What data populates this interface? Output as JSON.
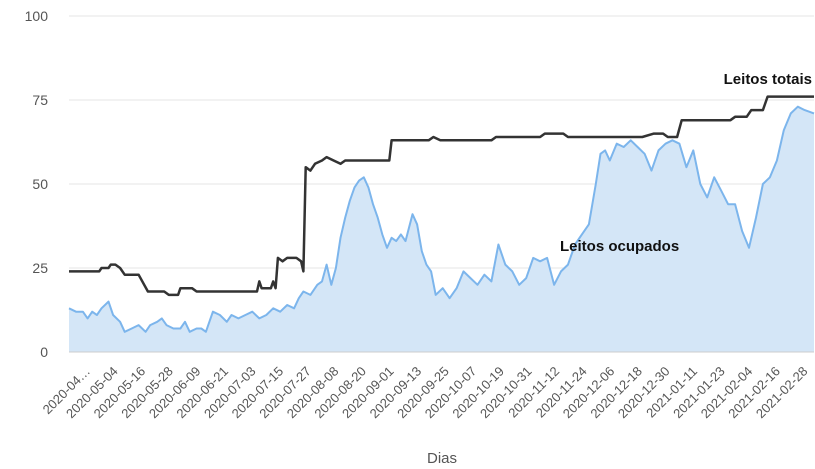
{
  "chart_data": {
    "type": "line",
    "xlabel": "Dias",
    "ylabel": "",
    "ylim": [
      0,
      100
    ],
    "yticks": [
      0,
      25,
      50,
      75,
      100
    ],
    "grid": true,
    "x_tick_labels": [
      "2020-04…",
      "2020-05-04",
      "2020-05-16",
      "2020-05-28",
      "2020-06-09",
      "2020-06-21",
      "2020-07-03",
      "2020-07-15",
      "2020-07-27",
      "2020-08-08",
      "2020-08-20",
      "2020-09-01",
      "2020-09-13",
      "2020-09-25",
      "2020-10-07",
      "2020-10-19",
      "2020-10-31",
      "2020-11-12",
      "2020-11-24",
      "2020-12-06",
      "2020-12-18",
      "2020-12-30",
      "2021-01-11",
      "2021-01-23",
      "2021-02-04",
      "2021-02-16",
      "2021-02-28"
    ],
    "colors": {
      "total": "#333333",
      "occupied_line": "#7cb5ec",
      "occupied_fill": "#d4e6f7",
      "grid": "#e6e6e6"
    },
    "series": [
      {
        "name": "Leitos totais",
        "type": "line",
        "points": [
          [
            "2020-04-23",
            24
          ],
          [
            "2020-05-06",
            24
          ],
          [
            "2020-05-07",
            25
          ],
          [
            "2020-05-10",
            25
          ],
          [
            "2020-05-11",
            26
          ],
          [
            "2020-05-13",
            26
          ],
          [
            "2020-05-15",
            25
          ],
          [
            "2020-05-17",
            23
          ],
          [
            "2020-05-23",
            23
          ],
          [
            "2020-05-27",
            18
          ],
          [
            "2020-06-03",
            18
          ],
          [
            "2020-06-05",
            17
          ],
          [
            "2020-06-09",
            17
          ],
          [
            "2020-06-10",
            19
          ],
          [
            "2020-06-15",
            19
          ],
          [
            "2020-06-17",
            18
          ],
          [
            "2020-07-13",
            18
          ],
          [
            "2020-07-14",
            21
          ],
          [
            "2020-07-15",
            19
          ],
          [
            "2020-07-19",
            19
          ],
          [
            "2020-07-20",
            21
          ],
          [
            "2020-07-21",
            19
          ],
          [
            "2020-07-22",
            28
          ],
          [
            "2020-07-24",
            27
          ],
          [
            "2020-07-26",
            28
          ],
          [
            "2020-07-30",
            28
          ],
          [
            "2020-08-01",
            27
          ],
          [
            "2020-08-02",
            24
          ],
          [
            "2020-08-03",
            55
          ],
          [
            "2020-08-05",
            54
          ],
          [
            "2020-08-07",
            56
          ],
          [
            "2020-08-10",
            57
          ],
          [
            "2020-08-12",
            58
          ],
          [
            "2020-08-15",
            57
          ],
          [
            "2020-08-18",
            56
          ],
          [
            "2020-08-20",
            57
          ],
          [
            "2020-09-08",
            57
          ],
          [
            "2020-09-09",
            63
          ],
          [
            "2020-09-25",
            63
          ],
          [
            "2020-09-27",
            64
          ],
          [
            "2020-09-30",
            63
          ],
          [
            "2020-10-22",
            63
          ],
          [
            "2020-10-24",
            64
          ],
          [
            "2020-11-12",
            64
          ],
          [
            "2020-11-14",
            65
          ],
          [
            "2020-11-22",
            65
          ],
          [
            "2020-11-24",
            64
          ],
          [
            "2020-12-26",
            64
          ],
          [
            "2020-12-31",
            65
          ],
          [
            "2021-01-04",
            65
          ],
          [
            "2021-01-06",
            64
          ],
          [
            "2021-01-10",
            64
          ],
          [
            "2021-01-12",
            69
          ],
          [
            "2021-02-02",
            69
          ],
          [
            "2021-02-04",
            70
          ],
          [
            "2021-02-09",
            70
          ],
          [
            "2021-02-11",
            72
          ],
          [
            "2021-02-16",
            72
          ],
          [
            "2021-02-18",
            76
          ],
          [
            "2021-03-10",
            76
          ]
        ]
      },
      {
        "name": "Leitos ocupados",
        "type": "area",
        "points": [
          [
            "2020-04-23",
            13
          ],
          [
            "2020-04-26",
            12
          ],
          [
            "2020-04-29",
            12
          ],
          [
            "2020-05-01",
            10
          ],
          [
            "2020-05-03",
            12
          ],
          [
            "2020-05-05",
            11
          ],
          [
            "2020-05-07",
            13
          ],
          [
            "2020-05-10",
            15
          ],
          [
            "2020-05-12",
            11
          ],
          [
            "2020-05-15",
            9
          ],
          [
            "2020-05-17",
            6
          ],
          [
            "2020-05-20",
            7
          ],
          [
            "2020-05-23",
            8
          ],
          [
            "2020-05-26",
            6
          ],
          [
            "2020-05-28",
            8
          ],
          [
            "2020-05-31",
            9
          ],
          [
            "2020-06-02",
            10
          ],
          [
            "2020-06-04",
            8
          ],
          [
            "2020-06-07",
            7
          ],
          [
            "2020-06-10",
            7
          ],
          [
            "2020-06-12",
            9
          ],
          [
            "2020-06-14",
            6
          ],
          [
            "2020-06-17",
            7
          ],
          [
            "2020-06-19",
            7
          ],
          [
            "2020-06-21",
            6
          ],
          [
            "2020-06-24",
            12
          ],
          [
            "2020-06-27",
            11
          ],
          [
            "2020-06-30",
            9
          ],
          [
            "2020-07-02",
            11
          ],
          [
            "2020-07-05",
            10
          ],
          [
            "2020-07-08",
            11
          ],
          [
            "2020-07-11",
            12
          ],
          [
            "2020-07-14",
            10
          ],
          [
            "2020-07-17",
            11
          ],
          [
            "2020-07-20",
            13
          ],
          [
            "2020-07-23",
            12
          ],
          [
            "2020-07-26",
            14
          ],
          [
            "2020-07-29",
            13
          ],
          [
            "2020-07-31",
            16
          ],
          [
            "2020-08-02",
            18
          ],
          [
            "2020-08-05",
            17
          ],
          [
            "2020-08-08",
            20
          ],
          [
            "2020-08-10",
            21
          ],
          [
            "2020-08-12",
            26
          ],
          [
            "2020-08-14",
            20
          ],
          [
            "2020-08-16",
            25
          ],
          [
            "2020-08-18",
            34
          ],
          [
            "2020-08-20",
            40
          ],
          [
            "2020-08-22",
            45
          ],
          [
            "2020-08-24",
            49
          ],
          [
            "2020-08-26",
            51
          ],
          [
            "2020-08-28",
            52
          ],
          [
            "2020-08-30",
            49
          ],
          [
            "2020-09-01",
            44
          ],
          [
            "2020-09-03",
            40
          ],
          [
            "2020-09-05",
            35
          ],
          [
            "2020-09-07",
            31
          ],
          [
            "2020-09-09",
            34
          ],
          [
            "2020-09-11",
            33
          ],
          [
            "2020-09-13",
            35
          ],
          [
            "2020-09-15",
            33
          ],
          [
            "2020-09-18",
            41
          ],
          [
            "2020-09-20",
            38
          ],
          [
            "2020-09-22",
            30
          ],
          [
            "2020-09-24",
            26
          ],
          [
            "2020-09-26",
            24
          ],
          [
            "2020-09-28",
            17
          ],
          [
            "2020-10-01",
            19
          ],
          [
            "2020-10-04",
            16
          ],
          [
            "2020-10-07",
            19
          ],
          [
            "2020-10-10",
            24
          ],
          [
            "2020-10-13",
            22
          ],
          [
            "2020-10-16",
            20
          ],
          [
            "2020-10-19",
            23
          ],
          [
            "2020-10-22",
            21
          ],
          [
            "2020-10-25",
            32
          ],
          [
            "2020-10-28",
            26
          ],
          [
            "2020-10-31",
            24
          ],
          [
            "2020-11-03",
            20
          ],
          [
            "2020-11-06",
            22
          ],
          [
            "2020-11-09",
            28
          ],
          [
            "2020-11-12",
            27
          ],
          [
            "2020-11-15",
            28
          ],
          [
            "2020-11-18",
            20
          ],
          [
            "2020-11-21",
            24
          ],
          [
            "2020-11-24",
            26
          ],
          [
            "2020-11-27",
            32
          ],
          [
            "2020-11-30",
            35
          ],
          [
            "2020-12-03",
            38
          ],
          [
            "2020-12-06",
            50
          ],
          [
            "2020-12-08",
            59
          ],
          [
            "2020-12-10",
            60
          ],
          [
            "2020-12-12",
            57
          ],
          [
            "2020-12-15",
            62
          ],
          [
            "2020-12-18",
            61
          ],
          [
            "2020-12-21",
            63
          ],
          [
            "2020-12-24",
            61
          ],
          [
            "2020-12-27",
            59
          ],
          [
            "2020-12-30",
            54
          ],
          [
            "2021-01-02",
            60
          ],
          [
            "2021-01-05",
            62
          ],
          [
            "2021-01-08",
            63
          ],
          [
            "2021-01-11",
            62
          ],
          [
            "2021-01-14",
            55
          ],
          [
            "2021-01-17",
            60
          ],
          [
            "2021-01-20",
            50
          ],
          [
            "2021-01-23",
            46
          ],
          [
            "2021-01-26",
            52
          ],
          [
            "2021-01-29",
            48
          ],
          [
            "2021-02-01",
            44
          ],
          [
            "2021-02-04",
            44
          ],
          [
            "2021-02-07",
            36
          ],
          [
            "2021-02-10",
            31
          ],
          [
            "2021-02-13",
            40
          ],
          [
            "2021-02-16",
            50
          ],
          [
            "2021-02-19",
            52
          ],
          [
            "2021-02-22",
            57
          ],
          [
            "2021-02-25",
            66
          ],
          [
            "2021-02-28",
            71
          ],
          [
            "2021-03-03",
            73
          ],
          [
            "2021-03-06",
            72
          ],
          [
            "2021-03-10",
            71
          ]
        ]
      }
    ]
  }
}
